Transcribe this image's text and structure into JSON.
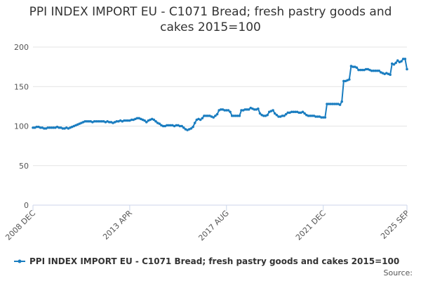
{
  "chart_data": {
    "type": "line",
    "title": "PPI INDEX IMPORT EU - C1071 Bread; fresh pastry goods and cakes 2015=100",
    "source": "Source:",
    "categories": [
      "2008 DEC",
      null,
      null,
      null,
      null,
      null,
      null,
      null,
      null,
      null,
      null,
      null,
      null,
      null,
      null,
      null,
      null,
      null,
      null,
      null,
      null,
      null,
      null,
      null,
      null,
      null,
      null,
      null,
      null,
      null,
      null,
      null,
      null,
      null,
      null,
      null,
      null,
      null,
      null,
      null,
      null,
      null,
      null,
      null,
      null,
      null,
      null,
      null,
      null,
      null,
      null,
      null,
      "2013 APR",
      null,
      null,
      null,
      null,
      null,
      null,
      null,
      null,
      null,
      null,
      null,
      null,
      null,
      null,
      null,
      null,
      null,
      null,
      null,
      null,
      null,
      null,
      null,
      null,
      null,
      null,
      null,
      null,
      null,
      null,
      null,
      null,
      null,
      null,
      null,
      null,
      null,
      null,
      null,
      null,
      null,
      null,
      null,
      null,
      null,
      null,
      null,
      null,
      null,
      null,
      null,
      "2017 AUG",
      null,
      null,
      null,
      null,
      null,
      null,
      null,
      null,
      null,
      null,
      null,
      null,
      null,
      null,
      null,
      null,
      null,
      null,
      null,
      null,
      null,
      null,
      null,
      null,
      null,
      null,
      null,
      null,
      null,
      null,
      null,
      null,
      null,
      null,
      null,
      null,
      null,
      null,
      null,
      null,
      null,
      null,
      null,
      null,
      null,
      null,
      null,
      null,
      null,
      null,
      null,
      "2021 DEC",
      null,
      null,
      null,
      null,
      null,
      null,
      null,
      null,
      null,
      null,
      null,
      null,
      null,
      null,
      null,
      null,
      null,
      null,
      null,
      null,
      null,
      null,
      null,
      null,
      null,
      null,
      null,
      null,
      null,
      null,
      null,
      null,
      null,
      null,
      null,
      null,
      null,
      null,
      null,
      null,
      null,
      null,
      null,
      null,
      "2025 SEP"
    ],
    "series": [
      {
        "name": "PPI INDEX IMPORT EU - C1071 Bread; fresh pastry goods and cakes 2015=100",
        "color": "#1a7dc0",
        "values": [
          98,
          98,
          99,
          99,
          98,
          98,
          97,
          97,
          98,
          98,
          98,
          98,
          98,
          99,
          98,
          98,
          97,
          97,
          98,
          97,
          98,
          99,
          100,
          101,
          102,
          103,
          104,
          105,
          106,
          106,
          106,
          106,
          105,
          106,
          106,
          106,
          106,
          106,
          106,
          105,
          106,
          105,
          105,
          104,
          105,
          106,
          106,
          107,
          106,
          107,
          107,
          107,
          107,
          108,
          108,
          109,
          110,
          110,
          109,
          108,
          107,
          105,
          107,
          108,
          109,
          108,
          106,
          104,
          103,
          101,
          100,
          100,
          101,
          101,
          101,
          101,
          100,
          101,
          101,
          100,
          100,
          98,
          96,
          95,
          96,
          97,
          99,
          104,
          108,
          109,
          108,
          110,
          113,
          113,
          113,
          113,
          112,
          111,
          113,
          115,
          120,
          121,
          121,
          120,
          120,
          120,
          118,
          113,
          113,
          113,
          113,
          113,
          120,
          120,
          121,
          121,
          121,
          123,
          122,
          121,
          121,
          122,
          116,
          114,
          113,
          113,
          114,
          118,
          119,
          120,
          116,
          114,
          112,
          112,
          113,
          113,
          115,
          117,
          117,
          118,
          118,
          118,
          118,
          117,
          117,
          118,
          116,
          114,
          113,
          113,
          113,
          113,
          112,
          112,
          112,
          111,
          111,
          111,
          128,
          128,
          128,
          128,
          128,
          128,
          128,
          127,
          131,
          157,
          157,
          158,
          159,
          176,
          175,
          175,
          174,
          171,
          171,
          171,
          171,
          172,
          172,
          171,
          170,
          170,
          170,
          170,
          170,
          168,
          167,
          166,
          167,
          166,
          165,
          179,
          178,
          180,
          183,
          181,
          182,
          185,
          185,
          172
        ]
      }
    ],
    "ylim": [
      0,
      200
    ],
    "yticks": [
      0,
      50,
      100,
      150,
      200
    ],
    "grid": true
  }
}
